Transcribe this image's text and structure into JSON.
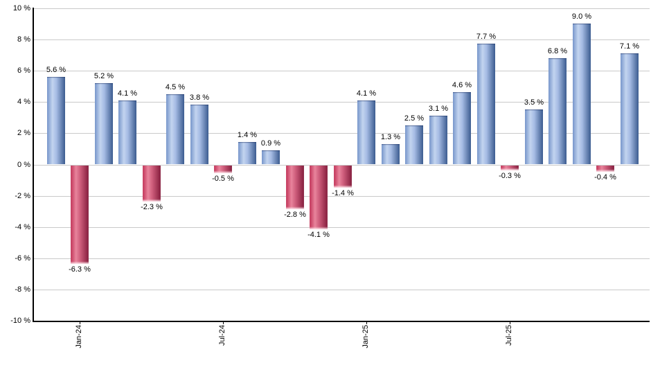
{
  "chart_data": {
    "type": "bar",
    "title": "",
    "unit": "%",
    "values": [
      5.6,
      -6.3,
      5.2,
      4.1,
      -2.3,
      4.5,
      3.8,
      -0.5,
      1.4,
      0.9,
      -2.8,
      -4.1,
      -1.4,
      4.1,
      1.3,
      2.5,
      3.1,
      4.6,
      7.7,
      -0.3,
      3.5,
      6.8,
      9.0,
      -0.4,
      7.1
    ],
    "value_labels": [
      "5.6 %",
      "-6.3 %",
      "5.2 %",
      "4.1 %",
      "-2.3 %",
      "4.5 %",
      "3.8 %",
      "-0.5 %",
      "1.4 %",
      "0.9 %",
      "-2.8 %",
      "-4.1 %",
      "-1.4 %",
      "4.1 %",
      "1.3 %",
      "2.5 %",
      "3.1 %",
      "4.6 %",
      "7.7 %",
      "-0.3 %",
      "3.5 %",
      "6.8 %",
      "9.0 %",
      "-0.4 %",
      "7.1 %"
    ],
    "y_axis": {
      "min": -10,
      "max": 10,
      "step": 2,
      "tick_labels": [
        "10 %",
        "8 %",
        "6 %",
        "4 %",
        "2 %",
        "0 %",
        "-2 %",
        "-4 %",
        "-6 %",
        "-8 %",
        "-10 %"
      ]
    },
    "x_axis": {
      "ticks": [
        {
          "bar_index": 1,
          "label": "Jan-24"
        },
        {
          "bar_index": 7,
          "label": "Jul-24"
        },
        {
          "bar_index": 13,
          "label": "Jan-25"
        },
        {
          "bar_index": 19,
          "label": "Jul-25"
        }
      ]
    },
    "grid": true,
    "legend_position": "none",
    "colors": {
      "positive_bar_light": "#c3d4ef",
      "positive_bar_mid": "#7796cb",
      "positive_bar_dark": "#3c5c90",
      "negative_bar_light": "#e8849c",
      "negative_bar_mid": "#c23358",
      "negative_bar_dark": "#851d3d",
      "gridline": "#c9c9c9",
      "axis": "#000000",
      "label_text": "#000000",
      "background": "#ffffff"
    }
  }
}
